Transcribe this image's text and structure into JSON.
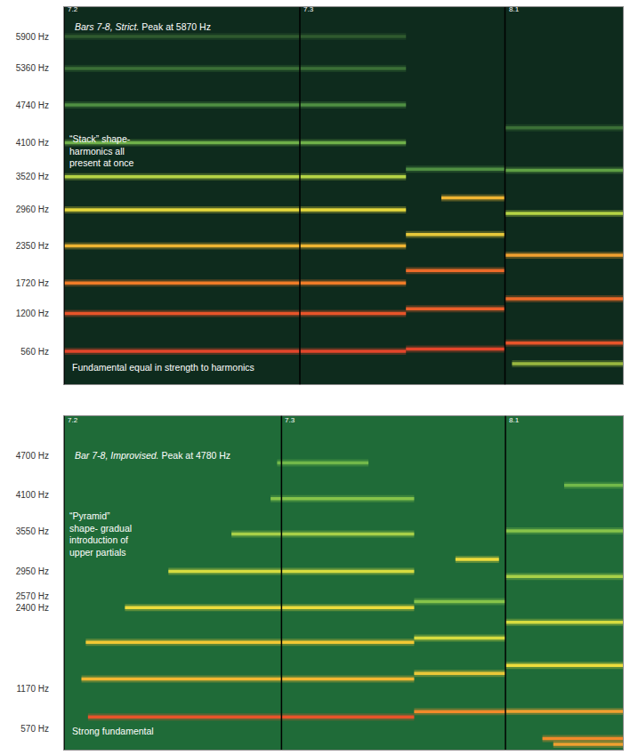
{
  "chart_data": [
    {
      "type": "line",
      "title": "Bars 7-8, Strict. Peak at 5870 Hz",
      "notes": [
        [
          "“Stack” shape-",
          "harmonics all",
          "present at once"
        ],
        [
          "Fundamental equal in strength to harmonics"
        ]
      ],
      "xlim": [
        0,
        2.37
      ],
      "ylim": [
        0,
        6400
      ],
      "yticks": [
        {
          "value": 560,
          "label": "560 Hz"
        },
        {
          "value": 1200,
          "label": "1200 Hz"
        },
        {
          "value": 1720,
          "label": "1720 Hz"
        },
        {
          "value": 2350,
          "label": "2350 Hz"
        },
        {
          "value": 2960,
          "label": "2960 Hz"
        },
        {
          "value": 3520,
          "label": "3520 Hz"
        },
        {
          "value": 4100,
          "label": "4100 Hz"
        },
        {
          "value": 4740,
          "label": "4740 Hz"
        },
        {
          "value": 5360,
          "label": "5360 Hz"
        },
        {
          "value": 5900,
          "label": "5900 Hz"
        }
      ],
      "tick_labels": "y",
      "grid": false,
      "markers": [
        {
          "x": 0,
          "label": "7.2"
        },
        {
          "x": 1,
          "label": "7.3"
        },
        {
          "x": 1.87,
          "label": "8.1"
        }
      ],
      "partials": [
        {
          "x": [
            0,
            1.45
          ],
          "y": [
            560,
            560
          ],
          "color": "#e2462b"
        },
        {
          "x": [
            0,
            1.45
          ],
          "y": [
            1200,
            1200
          ],
          "color": "#e8542a"
        },
        {
          "x": [
            0,
            1.45
          ],
          "y": [
            1720,
            1720
          ],
          "color": "#f07c28"
        },
        {
          "x": [
            0,
            1.45
          ],
          "y": [
            2350,
            2350
          ],
          "color": "#f0b532"
        },
        {
          "x": [
            0,
            1.45
          ],
          "y": [
            2960,
            2960
          ],
          "color": "#e6d83c"
        },
        {
          "x": [
            0,
            1.45
          ],
          "y": [
            3520,
            3520
          ],
          "color": "#b5d445"
        },
        {
          "x": [
            0,
            1.45
          ],
          "y": [
            4100,
            4100
          ],
          "color": "#6fb04a"
        },
        {
          "x": [
            0,
            1.45
          ],
          "y": [
            4740,
            4740
          ],
          "color": "#4f8f42"
        },
        {
          "x": [
            0,
            1.45
          ],
          "y": [
            5360,
            5360
          ],
          "color": "#3b6f36"
        },
        {
          "x": [
            0,
            1.45
          ],
          "y": [
            5900,
            5900
          ],
          "color": "#2f5a2e"
        },
        {
          "x": [
            1.45,
            1.87
          ],
          "y": [
            600,
            600
          ],
          "color": "#e2462b"
        },
        {
          "x": [
            1.45,
            1.87
          ],
          "y": [
            1280,
            1280
          ],
          "color": "#ea5f2a"
        },
        {
          "x": [
            1.45,
            1.87
          ],
          "y": [
            1930,
            1930
          ],
          "color": "#ec6a29"
        },
        {
          "x": [
            1.45,
            1.87
          ],
          "y": [
            2540,
            2540
          ],
          "color": "#e6c83a"
        },
        {
          "x": [
            1.6,
            1.87
          ],
          "y": [
            3165,
            3165
          ],
          "color": "#f0b532"
        },
        {
          "x": [
            1.45,
            1.87
          ],
          "y": [
            3650,
            3650
          ],
          "color": "#4f8f42"
        },
        {
          "x": [
            1.87,
            2.37
          ],
          "y": [
            700,
            700
          ],
          "color": "#e8542a"
        },
        {
          "x": [
            1.87,
            2.37
          ],
          "y": [
            1450,
            1450
          ],
          "color": "#ec6a29"
        },
        {
          "x": [
            1.87,
            2.37
          ],
          "y": [
            2190,
            2190
          ],
          "color": "#f0a030"
        },
        {
          "x": [
            1.87,
            2.37
          ],
          "y": [
            2900,
            2900
          ],
          "color": "#b5d445"
        },
        {
          "x": [
            1.87,
            2.37
          ],
          "y": [
            3630,
            3630
          ],
          "color": "#5fa044"
        },
        {
          "x": [
            1.87,
            2.37
          ],
          "y": [
            4350,
            4350
          ],
          "color": "#3b6f36"
        },
        {
          "x": [
            1.9,
            2.37
          ],
          "y": [
            350,
            350
          ],
          "color": "#9ab840"
        }
      ]
    },
    {
      "type": "line",
      "title": "Bar 7-8, Improvised. Peak at 4780 Hz",
      "notes": [
        [
          "“Pyramid”",
          "shape- gradual",
          "introduction of",
          "upper partials"
        ],
        [
          "Strong fundamental"
        ]
      ],
      "xlim": [
        0,
        2.57
      ],
      "ylim": [
        250,
        5300
      ],
      "yticks": [
        {
          "value": 570,
          "label": "570 Hz"
        },
        {
          "value": 1170,
          "label": "1170 Hz"
        },
        {
          "value": 2570,
          "label": "2570 Hz"
        },
        {
          "value": 2400,
          "label": "2400 Hz"
        },
        {
          "value": 2950,
          "label": "2950 Hz"
        },
        {
          "value": 3550,
          "label": "3550 Hz"
        },
        {
          "value": 4100,
          "label": "4100 Hz"
        },
        {
          "value": 4700,
          "label": "4700 Hz"
        }
      ],
      "tick_labels": "y",
      "grid": false,
      "markers": [
        {
          "x": 0,
          "label": "7.2"
        },
        {
          "x": 1,
          "label": "7.3"
        },
        {
          "x": 2.03,
          "label": "8.1"
        }
      ],
      "partials": [
        {
          "x": [
            0.11,
            1.61
          ],
          "y": [
            745,
            745
          ],
          "color": "#e8542a"
        },
        {
          "x": [
            0.08,
            1.61
          ],
          "y": [
            1320,
            1320
          ],
          "color": "#f2b632"
        },
        {
          "x": [
            0.1,
            1.61
          ],
          "y": [
            1875,
            1875
          ],
          "color": "#f2c834"
        },
        {
          "x": [
            0.28,
            1.61
          ],
          "y": [
            2400,
            2400
          ],
          "color": "#eedc3c"
        },
        {
          "x": [
            0.48,
            1.61
          ],
          "y": [
            2950,
            2950
          ],
          "color": "#d6dc40"
        },
        {
          "x": [
            0.77,
            1.61
          ],
          "y": [
            3515,
            3515
          ],
          "color": "#a8d048"
        },
        {
          "x": [
            0.95,
            1.61
          ],
          "y": [
            4050,
            4050
          ],
          "color": "#86c44a"
        },
        {
          "x": [
            0.98,
            1.4
          ],
          "y": [
            4590,
            4590
          ],
          "color": "#72b84a"
        },
        {
          "x": [
            1.61,
            2.03
          ],
          "y": [
            826,
            826
          ],
          "color": "#f08a2a"
        },
        {
          "x": [
            1.61,
            2.03
          ],
          "y": [
            1404,
            1404
          ],
          "color": "#eac838"
        },
        {
          "x": [
            1.61,
            2.03
          ],
          "y": [
            1940,
            1940
          ],
          "color": "#d6dc40"
        },
        {
          "x": [
            1.61,
            2.03
          ],
          "y": [
            2490,
            2490
          ],
          "color": "#86c44a"
        },
        {
          "x": [
            1.8,
            2.0
          ],
          "y": [
            3130,
            3130
          ],
          "color": "#eedc3c"
        },
        {
          "x": [
            2.03,
            2.57
          ],
          "y": [
            830,
            830
          ],
          "color": "#f0a030"
        },
        {
          "x": [
            2.03,
            2.57
          ],
          "y": [
            1525,
            1525
          ],
          "color": "#eedc3c"
        },
        {
          "x": [
            2.03,
            2.57
          ],
          "y": [
            2180,
            2180
          ],
          "color": "#d6dc40"
        },
        {
          "x": [
            2.03,
            2.57
          ],
          "y": [
            2870,
            2870
          ],
          "color": "#a8d048"
        },
        {
          "x": [
            2.03,
            2.57
          ],
          "y": [
            3560,
            3560
          ],
          "color": "#86c44a"
        },
        {
          "x": [
            2.3,
            2.57
          ],
          "y": [
            4250,
            4250
          ],
          "color": "#72b84a"
        },
        {
          "x": [
            2.2,
            2.57
          ],
          "y": [
            420,
            420
          ],
          "color": "#f08a2a"
        },
        {
          "x": [
            2.25,
            2.57
          ],
          "y": [
            330,
            330
          ],
          "color": "#f0a030"
        }
      ]
    }
  ]
}
